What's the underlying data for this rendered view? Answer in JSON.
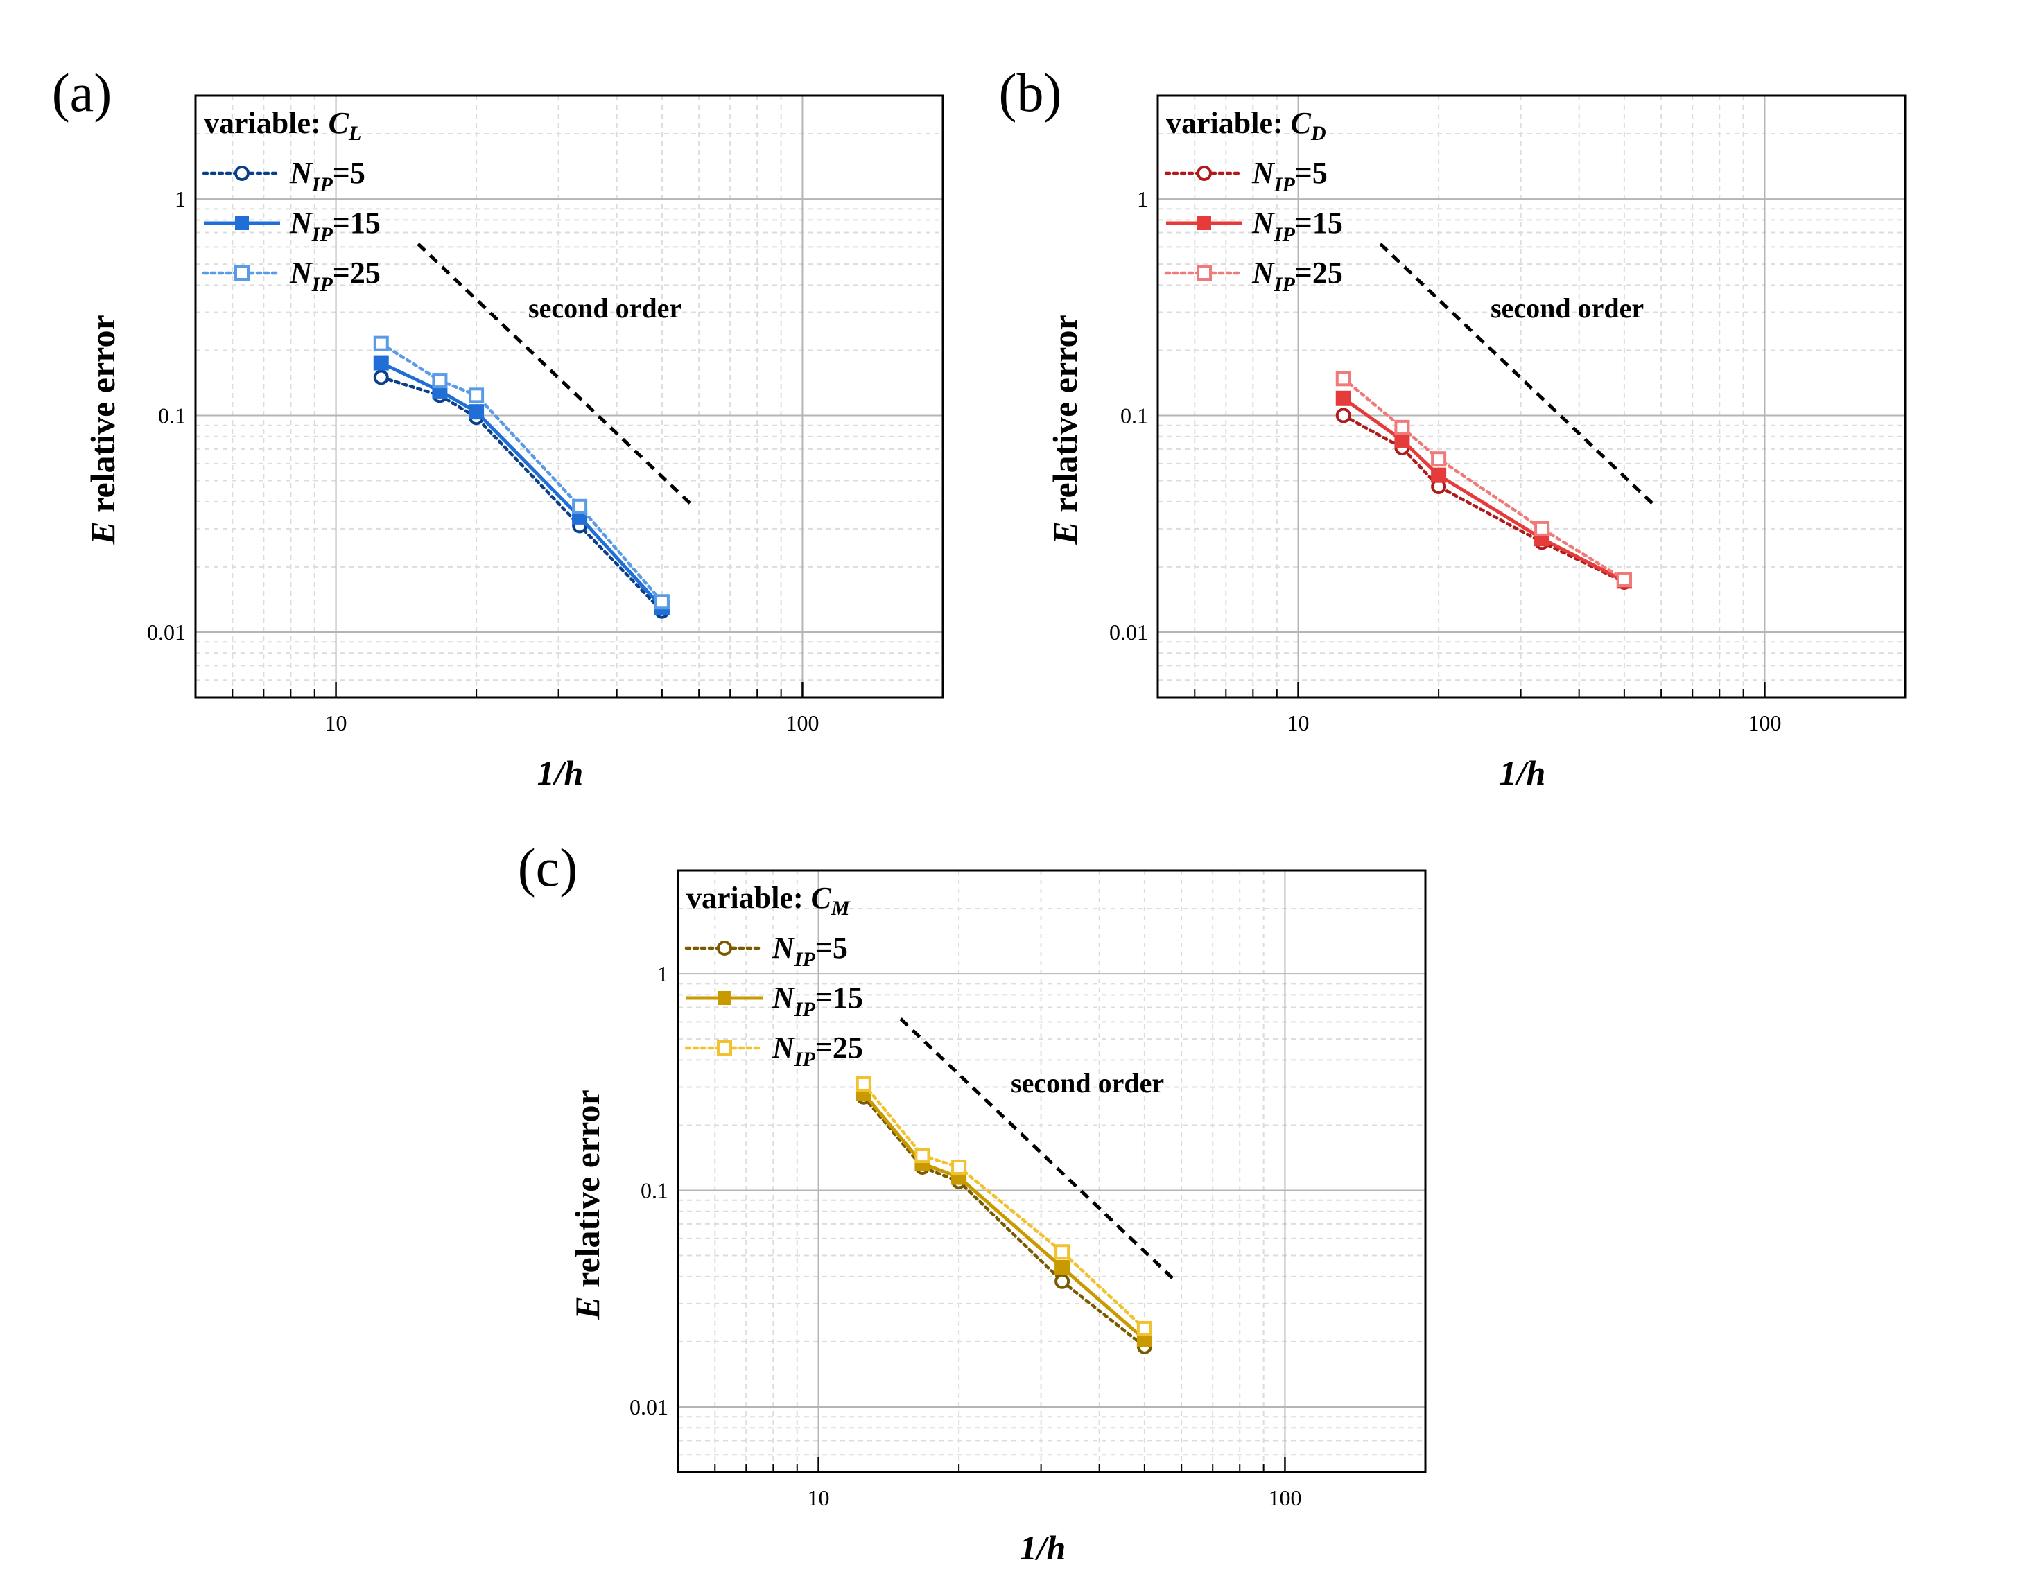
{
  "chart_data": [
    {
      "panel_label": "(a)",
      "type": "line",
      "xscale": "log",
      "yscale": "log",
      "xlim": [
        5,
        200
      ],
      "ylim": [
        0.005,
        3
      ],
      "xticks": [
        10,
        100
      ],
      "xtick_labels": [
        "10",
        "100"
      ],
      "yticks": [
        0.01,
        0.1,
        1
      ],
      "ytick_labels": [
        "0.01",
        "0.1",
        "1"
      ],
      "xlabel": "1/h",
      "ylabel_italic": "E",
      "ylabel_rest": " relative error",
      "grid": true,
      "legend": {
        "position": "top-left",
        "title_prefix": "variable: ",
        "title_var": "C",
        "title_sub": "L"
      },
      "series": [
        {
          "name_main": "N",
          "name_sub": "IP",
          "name_suffix": "=5",
          "style": "dotted",
          "marker": "circle-open",
          "color": "#0a3f8c",
          "x": [
            12.5,
            16.7,
            20,
            33.3,
            50
          ],
          "y": [
            0.15,
            0.124,
            0.098,
            0.031,
            0.0125
          ]
        },
        {
          "name_main": "N",
          "name_sub": "IP",
          "name_suffix": "=15",
          "style": "solid",
          "marker": "square-filled",
          "color": "#1f6fd6",
          "x": [
            12.5,
            16.7,
            20,
            33.3,
            50
          ],
          "y": [
            0.175,
            0.13,
            0.104,
            0.034,
            0.013
          ]
        },
        {
          "name_main": "N",
          "name_sub": "IP",
          "name_suffix": "=25",
          "style": "dotted",
          "marker": "square-open",
          "color": "#5a9be8",
          "x": [
            12.5,
            16.7,
            20,
            33.3,
            50
          ],
          "y": [
            0.215,
            0.145,
            0.124,
            0.038,
            0.0138
          ]
        }
      ],
      "reference": {
        "label": "second order",
        "x": [
          15,
          58
        ],
        "y": [
          0.62,
          0.0385
        ]
      }
    },
    {
      "panel_label": "(b)",
      "type": "line",
      "xscale": "log",
      "yscale": "log",
      "xlim": [
        5,
        200
      ],
      "ylim": [
        0.005,
        3
      ],
      "xticks": [
        10,
        100
      ],
      "xtick_labels": [
        "10",
        "100"
      ],
      "yticks": [
        0.01,
        0.1,
        1
      ],
      "ytick_labels": [
        "0.01",
        "0.1",
        "1"
      ],
      "xlabel": "1/h",
      "ylabel_italic": "E",
      "ylabel_rest": " relative error",
      "grid": true,
      "legend": {
        "position": "top-left",
        "title_prefix": "variable: ",
        "title_var": "C",
        "title_sub": "D"
      },
      "series": [
        {
          "name_main": "N",
          "name_sub": "IP",
          "name_suffix": "=5",
          "style": "dotted",
          "marker": "circle-open",
          "color": "#b01a1a",
          "x": [
            12.5,
            16.7,
            20,
            33.3,
            50
          ],
          "y": [
            0.1,
            0.071,
            0.047,
            0.026,
            0.017
          ]
        },
        {
          "name_main": "N",
          "name_sub": "IP",
          "name_suffix": "=15",
          "style": "solid",
          "marker": "square-filled",
          "color": "#e53b3b",
          "x": [
            12.5,
            16.7,
            20,
            33.3,
            50
          ],
          "y": [
            0.12,
            0.077,
            0.053,
            0.027,
            0.0172
          ]
        },
        {
          "name_main": "N",
          "name_sub": "IP",
          "name_suffix": "=25",
          "style": "dotted",
          "marker": "square-open",
          "color": "#f07a7a",
          "x": [
            12.5,
            16.7,
            20,
            33.3,
            50
          ],
          "y": [
            0.148,
            0.088,
            0.063,
            0.03,
            0.0175
          ]
        }
      ],
      "reference": {
        "label": "second order",
        "x": [
          15,
          58
        ],
        "y": [
          0.62,
          0.0385
        ]
      }
    },
    {
      "panel_label": "(c)",
      "type": "line",
      "xscale": "log",
      "yscale": "log",
      "xlim": [
        5,
        200
      ],
      "ylim": [
        0.005,
        3
      ],
      "xticks": [
        10,
        100
      ],
      "xtick_labels": [
        "10",
        "100"
      ],
      "yticks": [
        0.01,
        0.1,
        1
      ],
      "ytick_labels": [
        "0.01",
        "0.1",
        "1"
      ],
      "xlabel": "1/h",
      "ylabel_italic": "E",
      "ylabel_rest": " relative error",
      "grid": true,
      "legend": {
        "position": "top-left",
        "title_prefix": "variable: ",
        "title_var": "C",
        "title_sub": "M"
      },
      "series": [
        {
          "name_main": "N",
          "name_sub": "IP",
          "name_suffix": "=5",
          "style": "dotted",
          "marker": "circle-open",
          "color": "#7a5a00",
          "x": [
            12.5,
            16.7,
            20,
            33.3,
            50
          ],
          "y": [
            0.27,
            0.128,
            0.11,
            0.038,
            0.019
          ]
        },
        {
          "name_main": "N",
          "name_sub": "IP",
          "name_suffix": "=15",
          "style": "solid",
          "marker": "square-filled",
          "color": "#c99a00",
          "x": [
            12.5,
            16.7,
            20,
            33.3,
            50
          ],
          "y": [
            0.28,
            0.133,
            0.115,
            0.044,
            0.0205
          ]
        },
        {
          "name_main": "N",
          "name_sub": "IP",
          "name_suffix": "=25",
          "style": "dotted",
          "marker": "square-open",
          "color": "#f2c12e",
          "x": [
            12.5,
            16.7,
            20,
            33.3,
            50
          ],
          "y": [
            0.31,
            0.145,
            0.128,
            0.052,
            0.023
          ]
        }
      ],
      "reference": {
        "label": "second order",
        "x": [
          15,
          58
        ],
        "y": [
          0.62,
          0.0385
        ]
      }
    }
  ]
}
